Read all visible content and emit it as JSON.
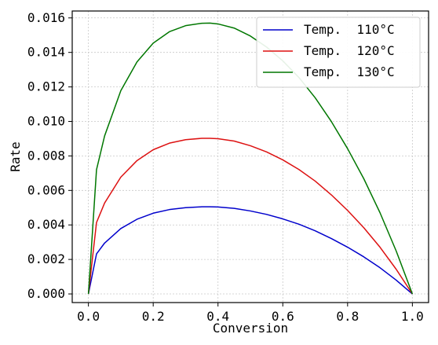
{
  "chart_data": {
    "type": "line",
    "xlabel": "Conversion",
    "ylabel": "Rate",
    "xlim": [
      -0.05,
      1.05
    ],
    "ylim": [
      -0.0005,
      0.0164
    ],
    "xticks": [
      "0.0",
      "0.2",
      "0.4",
      "0.6",
      "0.8",
      "1.0"
    ],
    "yticks": [
      "0.000",
      "0.002",
      "0.004",
      "0.006",
      "0.008",
      "0.010",
      "0.012",
      "0.014",
      "0.016"
    ],
    "grid": true,
    "legend_position": "top-right",
    "series": [
      {
        "name": "Temp.  110°C",
        "color": "#0000cc",
        "x": [
          0.0,
          0.025,
          0.05,
          0.1,
          0.15,
          0.2,
          0.25,
          0.3,
          0.35,
          0.375,
          0.4,
          0.45,
          0.5,
          0.55,
          0.6,
          0.65,
          0.7,
          0.75,
          0.8,
          0.85,
          0.9,
          0.95,
          1.0
        ],
        "y": [
          0.0,
          0.00232,
          0.00295,
          0.00379,
          0.00433,
          0.00468,
          0.00489,
          0.005,
          0.00505,
          0.00505,
          0.00504,
          0.00496,
          0.00481,
          0.00461,
          0.00435,
          0.00404,
          0.00366,
          0.00321,
          0.00271,
          0.00215,
          0.00152,
          0.0008,
          0.0
        ]
      },
      {
        "name": "Temp.  120°C",
        "color": "#dd1111",
        "x": [
          0.0,
          0.025,
          0.05,
          0.1,
          0.15,
          0.2,
          0.25,
          0.3,
          0.35,
          0.375,
          0.4,
          0.45,
          0.5,
          0.55,
          0.6,
          0.65,
          0.7,
          0.75,
          0.8,
          0.85,
          0.9,
          0.95,
          1.0
        ],
        "y": [
          0.0,
          0.00414,
          0.00527,
          0.00677,
          0.00773,
          0.00836,
          0.00874,
          0.00894,
          0.00902,
          0.00902,
          0.009,
          0.00886,
          0.00859,
          0.00823,
          0.00777,
          0.00721,
          0.00654,
          0.00574,
          0.00484,
          0.00384,
          0.00271,
          0.00143,
          0.0
        ]
      },
      {
        "name": "Temp.  130°C",
        "color": "#007700",
        "x": [
          0.0,
          0.025,
          0.05,
          0.1,
          0.15,
          0.2,
          0.25,
          0.3,
          0.35,
          0.375,
          0.4,
          0.45,
          0.5,
          0.55,
          0.6,
          0.65,
          0.7,
          0.75,
          0.8,
          0.85,
          0.9,
          0.95,
          1.0
        ],
        "y": [
          0.0,
          0.0072,
          0.00916,
          0.01178,
          0.01345,
          0.01454,
          0.0152,
          0.01555,
          0.01569,
          0.0157,
          0.01565,
          0.01541,
          0.01495,
          0.01431,
          0.01351,
          0.01254,
          0.01137,
          0.00999,
          0.00842,
          0.00668,
          0.00471,
          0.00249,
          0.0
        ]
      }
    ]
  }
}
